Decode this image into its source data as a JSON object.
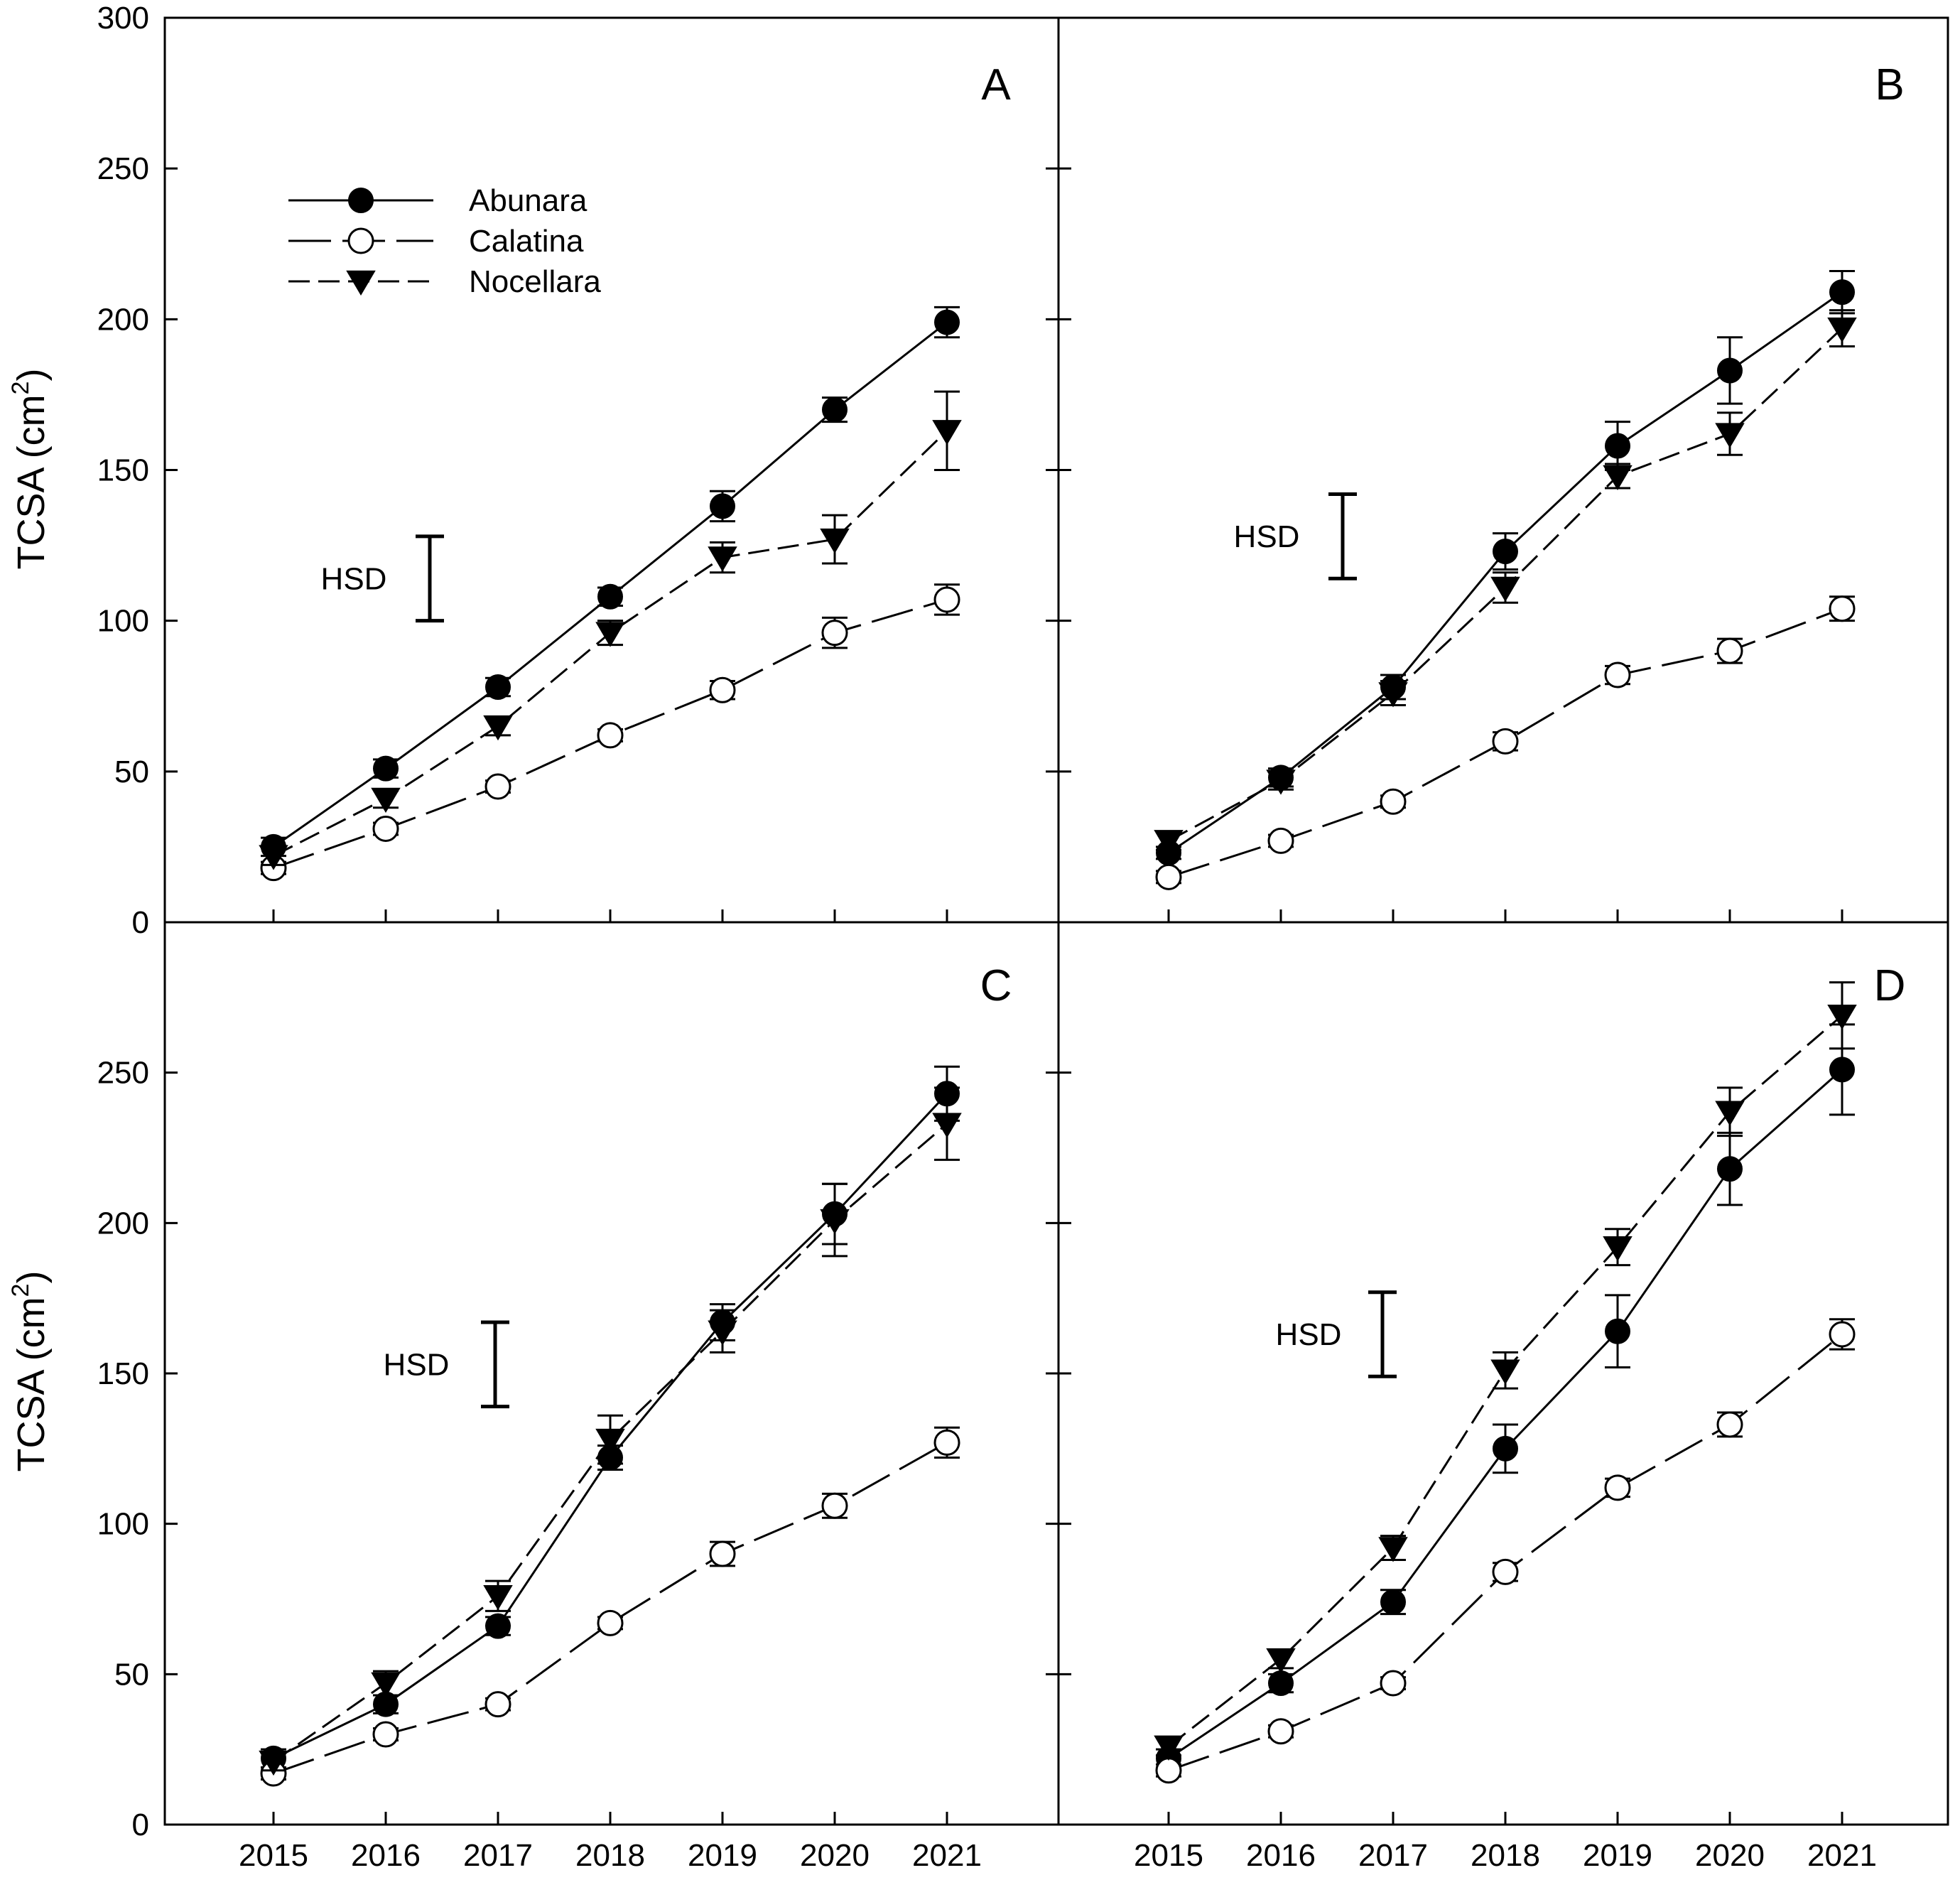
{
  "chart_data": {
    "type": "line",
    "title": "",
    "xlabel": "",
    "ylabel": "TCSA (cm²)",
    "ylabel_base": "TCSA (cm",
    "ylabel_sup": "2",
    "ylabel_close": ")",
    "x": [
      "2015",
      "2016",
      "2017",
      "2018",
      "2019",
      "2020",
      "2021"
    ],
    "ylim": [
      0,
      300
    ],
    "yticks_top": [
      "0",
      "50",
      "100",
      "150",
      "200",
      "250",
      "300"
    ],
    "yticks_bottom": [
      "0",
      "50",
      "100",
      "150",
      "200",
      "250"
    ],
    "hsd_label": "HSD",
    "legend": {
      "position": "upper-left of panel A",
      "entries": [
        {
          "name": "Abunara",
          "marker": "filled-circle",
          "line": "solid"
        },
        {
          "name": "Calatina",
          "marker": "open-circle",
          "line": "long-dash"
        },
        {
          "name": "Nocellara",
          "marker": "filled-triangle-down",
          "line": "short-dash"
        }
      ]
    },
    "panels": [
      {
        "label": "A",
        "hsd": 28,
        "hsd_center": 114,
        "series": [
          {
            "name": "Abunara",
            "values": [
              25,
              51,
              78,
              108,
              138,
              170,
              199
            ],
            "errors": [
              3,
              3,
              3,
              3,
              5,
              4,
              5
            ]
          },
          {
            "name": "Calatina",
            "values": [
              18,
              31,
              45,
              62,
              77,
              96,
              107
            ],
            "errors": [
              2,
              2,
              2,
              2,
              3,
              5,
              5
            ]
          },
          {
            "name": "Nocellara",
            "values": [
              22,
              41,
              65,
              96,
              121,
              127,
              163
            ],
            "errors": [
              3,
              3,
              3,
              4,
              5,
              8,
              13
            ]
          }
        ]
      },
      {
        "label": "B",
        "hsd": 28,
        "hsd_center": 128,
        "series": [
          {
            "name": "Abunara",
            "values": [
              23,
              48,
              78,
              123,
              158,
              183,
              209
            ],
            "errors": [
              2,
              3,
              4,
              6,
              8,
              11,
              7
            ]
          },
          {
            "name": "Calatina",
            "values": [
              15,
              27,
              40,
              60,
              82,
              90,
              104
            ],
            "errors": [
              2,
              2,
              2,
              3,
              3,
              4,
              4
            ]
          },
          {
            "name": "Nocellara",
            "values": [
              27,
              47,
              76,
              111,
              148,
              162,
              197
            ],
            "errors": [
              3,
              3,
              4,
              5,
              4,
              7,
              6
            ]
          }
        ]
      },
      {
        "label": "C",
        "hsd": 28,
        "hsd_center": 153,
        "series": [
          {
            "name": "Abunara",
            "values": [
              22,
              40,
              66,
              122,
              167,
              203,
              243
            ],
            "errors": [
              3,
              3,
              3,
              4,
              6,
              10,
              9
            ]
          },
          {
            "name": "Calatina",
            "values": [
              17,
              30,
              40,
              67,
              90,
              106,
              127
            ],
            "errors": [
              2,
              2,
              2,
              2,
              4,
              4,
              5
            ]
          },
          {
            "name": "Nocellara",
            "values": [
              21,
              47,
              76,
              128,
              164,
              201,
              233
            ],
            "errors": [
              3,
              4,
              5,
              8,
              7,
              12,
              12
            ]
          }
        ]
      },
      {
        "label": "D",
        "hsd": 28,
        "hsd_center": 163,
        "series": [
          {
            "name": "Abunara",
            "values": [
              22,
              47,
              74,
              125,
              164,
              218,
              251
            ],
            "errors": [
              3,
              3,
              4,
              8,
              12,
              12,
              15
            ]
          },
          {
            "name": "Calatina",
            "values": [
              18,
              31,
              47,
              84,
              112,
              133,
              163
            ],
            "errors": [
              2,
              2,
              2,
              3,
              3,
              4,
              5
            ]
          },
          {
            "name": "Nocellara",
            "values": [
              26,
              55,
              92,
              151,
              192,
              237,
              269
            ],
            "errors": [
              3,
              3,
              4,
              6,
              6,
              8,
              11
            ]
          }
        ]
      }
    ]
  }
}
